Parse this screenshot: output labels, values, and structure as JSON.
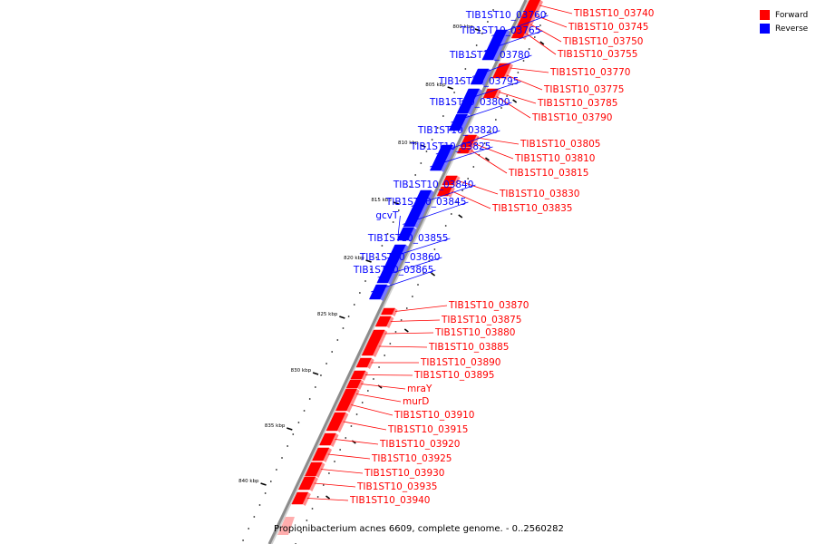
{
  "legend": [
    {
      "label": "Forward",
      "color": "#ff0000"
    },
    {
      "label": "Reverse",
      "color": "#0000ff"
    }
  ],
  "caption": "Propionibacterium acnes 6609, complete genome. - 0..2560282",
  "colors": {
    "forward": "#ff0000",
    "reverse": "#0000ff",
    "backbone": "#8c8c8c",
    "leader": "#555555"
  },
  "ticks": [
    {
      "label": "800 kbp"
    },
    {
      "label": "805 kbp"
    },
    {
      "label": "810 kbp"
    },
    {
      "label": "815 kbp"
    },
    {
      "label": "820 kbp"
    },
    {
      "label": "825 kbp"
    },
    {
      "label": "830 kbp"
    },
    {
      "label": "835 kbp"
    },
    {
      "label": "840 kbp"
    }
  ],
  "genes": [
    {
      "name": "TIB1ST10_03740",
      "strand": "forward"
    },
    {
      "name": "TIB1ST10_03745",
      "strand": "forward"
    },
    {
      "name": "TIB1ST10_03750",
      "strand": "forward"
    },
    {
      "name": "TIB1ST10_03755",
      "strand": "forward"
    },
    {
      "name": "TIB1ST10_03760",
      "strand": "reverse"
    },
    {
      "name": "TIB1ST10_03765",
      "strand": "reverse"
    },
    {
      "name": "TIB1ST10_03770",
      "strand": "forward"
    },
    {
      "name": "TIB1ST10_03775",
      "strand": "forward"
    },
    {
      "name": "TIB1ST10_03780",
      "strand": "reverse"
    },
    {
      "name": "TIB1ST10_03785",
      "strand": "forward"
    },
    {
      "name": "TIB1ST10_03790",
      "strand": "forward"
    },
    {
      "name": "TIB1ST10_03795",
      "strand": "reverse"
    },
    {
      "name": "TIB1ST10_03800",
      "strand": "reverse"
    },
    {
      "name": "TIB1ST10_03805",
      "strand": "forward"
    },
    {
      "name": "TIB1ST10_03810",
      "strand": "forward"
    },
    {
      "name": "TIB1ST10_03815",
      "strand": "forward"
    },
    {
      "name": "TIB1ST10_03820",
      "strand": "reverse"
    },
    {
      "name": "TIB1ST10_03825",
      "strand": "reverse"
    },
    {
      "name": "TIB1ST10_03830",
      "strand": "forward"
    },
    {
      "name": "TIB1ST10_03835",
      "strand": "forward"
    },
    {
      "name": "TIB1ST10_03840",
      "strand": "reverse"
    },
    {
      "name": "TIB1ST10_03845",
      "strand": "reverse"
    },
    {
      "name": "gcvT",
      "strand": "reverse"
    },
    {
      "name": "TIB1ST10_03855",
      "strand": "reverse"
    },
    {
      "name": "TIB1ST10_03860",
      "strand": "reverse"
    },
    {
      "name": "TIB1ST10_03865",
      "strand": "reverse"
    },
    {
      "name": "TIB1ST10_03870",
      "strand": "forward"
    },
    {
      "name": "TIB1ST10_03875",
      "strand": "forward"
    },
    {
      "name": "TIB1ST10_03880",
      "strand": "forward"
    },
    {
      "name": "TIB1ST10_03885",
      "strand": "forward"
    },
    {
      "name": "TIB1ST10_03890",
      "strand": "forward"
    },
    {
      "name": "TIB1ST10_03895",
      "strand": "forward"
    },
    {
      "name": "mraY",
      "strand": "forward"
    },
    {
      "name": "murD",
      "strand": "forward"
    },
    {
      "name": "TIB1ST10_03910",
      "strand": "forward"
    },
    {
      "name": "TIB1ST10_03915",
      "strand": "forward"
    },
    {
      "name": "TIB1ST10_03920",
      "strand": "forward"
    },
    {
      "name": "TIB1ST10_03925",
      "strand": "forward"
    },
    {
      "name": "TIB1ST10_03930",
      "strand": "forward"
    },
    {
      "name": "TIB1ST10_03935",
      "strand": "forward"
    },
    {
      "name": "TIB1ST10_03940",
      "strand": "forward"
    }
  ]
}
